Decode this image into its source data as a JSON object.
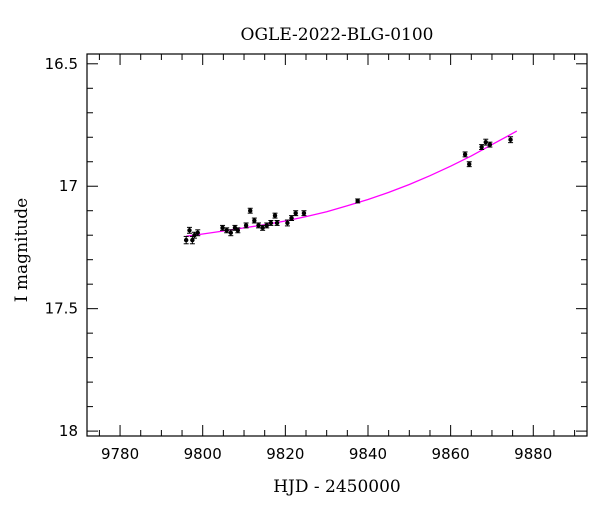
{
  "chart_data": {
    "type": "scatter",
    "title": "OGLE-2022-BLG-0100",
    "xlabel": "HJD - 2450000",
    "ylabel": "I magnitude",
    "xlim": [
      9772,
      9893
    ],
    "ylim": [
      16.46,
      18.02
    ],
    "y_inverted": true,
    "x_ticks": [
      9780,
      9800,
      9820,
      9840,
      9860,
      9880
    ],
    "y_ticks": [
      16.5,
      17,
      17.5,
      18
    ],
    "y_tick_labels": [
      "16.5",
      "17",
      "17.5",
      "18"
    ],
    "grid": false,
    "point_color": "#000000",
    "model_color": "#ff00ff",
    "points": [
      {
        "x": 9796.0,
        "y": 17.22,
        "err": 0.015
      },
      {
        "x": 9796.8,
        "y": 17.18,
        "err": 0.012
      },
      {
        "x": 9797.5,
        "y": 17.22,
        "err": 0.015
      },
      {
        "x": 9798.0,
        "y": 17.2,
        "err": 0.012
      },
      {
        "x": 9798.8,
        "y": 17.19,
        "err": 0.012
      },
      {
        "x": 9804.8,
        "y": 17.17,
        "err": 0.01
      },
      {
        "x": 9805.8,
        "y": 17.18,
        "err": 0.01
      },
      {
        "x": 9806.8,
        "y": 17.19,
        "err": 0.012
      },
      {
        "x": 9807.8,
        "y": 17.17,
        "err": 0.01
      },
      {
        "x": 9808.5,
        "y": 17.18,
        "err": 0.01
      },
      {
        "x": 9810.5,
        "y": 17.16,
        "err": 0.01
      },
      {
        "x": 9811.5,
        "y": 17.1,
        "err": 0.01
      },
      {
        "x": 9812.5,
        "y": 17.14,
        "err": 0.01
      },
      {
        "x": 9813.5,
        "y": 17.16,
        "err": 0.01
      },
      {
        "x": 9814.5,
        "y": 17.17,
        "err": 0.01
      },
      {
        "x": 9815.5,
        "y": 17.16,
        "err": 0.01
      },
      {
        "x": 9816.5,
        "y": 17.15,
        "err": 0.01
      },
      {
        "x": 9817.5,
        "y": 17.12,
        "err": 0.01
      },
      {
        "x": 9818.0,
        "y": 17.15,
        "err": 0.01
      },
      {
        "x": 9820.5,
        "y": 17.15,
        "err": 0.012
      },
      {
        "x": 9821.5,
        "y": 17.13,
        "err": 0.01
      },
      {
        "x": 9822.5,
        "y": 17.11,
        "err": 0.01
      },
      {
        "x": 9824.5,
        "y": 17.11,
        "err": 0.01
      },
      {
        "x": 9837.5,
        "y": 17.06,
        "err": 0.008
      },
      {
        "x": 9863.5,
        "y": 16.87,
        "err": 0.01
      },
      {
        "x": 9864.5,
        "y": 16.91,
        "err": 0.01
      },
      {
        "x": 9867.5,
        "y": 16.84,
        "err": 0.01
      },
      {
        "x": 9868.5,
        "y": 16.82,
        "err": 0.012
      },
      {
        "x": 9869.5,
        "y": 16.83,
        "err": 0.01
      },
      {
        "x": 9874.5,
        "y": 16.81,
        "err": 0.012
      }
    ],
    "model": {
      "x": [
        9796,
        9800,
        9805,
        9810,
        9815,
        9820,
        9825,
        9830,
        9835,
        9840,
        9845,
        9850,
        9855,
        9860,
        9865,
        9870,
        9876
      ],
      "y": [
        17.204,
        17.195,
        17.183,
        17.17,
        17.157,
        17.142,
        17.124,
        17.104,
        17.08,
        17.054,
        17.025,
        16.993,
        16.957,
        16.918,
        16.876,
        16.83,
        16.775
      ]
    }
  }
}
